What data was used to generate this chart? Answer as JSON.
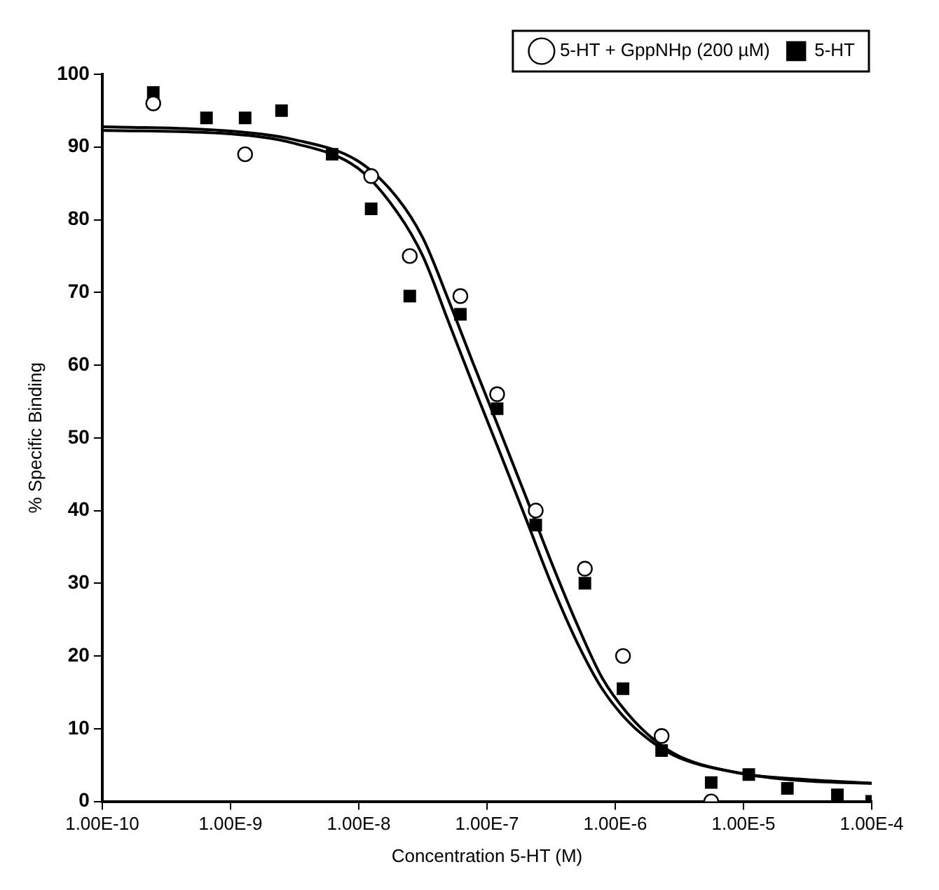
{
  "chart_data": {
    "type": "scatter",
    "xlabel": "Concentration 5-HT (M)",
    "ylabel": "% Specific Binding",
    "log": "x",
    "grid": false,
    "legend": "top right",
    "xlim": [
      1e-10,
      0.0001
    ],
    "xticks": [
      {
        "value": 1e-10,
        "label": "1.00E-10"
      },
      {
        "value": 1e-09,
        "label": "1.00E-9"
      },
      {
        "value": 1e-08,
        "label": "1.00E-8"
      },
      {
        "value": 1e-07,
        "label": "1.00E-7"
      },
      {
        "value": 1e-06,
        "label": "1.00E-6"
      },
      {
        "value": 1e-05,
        "label": "1.00E-5"
      },
      {
        "value": 0.0001,
        "label": "1.00E-4"
      }
    ],
    "ylim": [
      0,
      100
    ],
    "yticks": [
      0,
      10,
      20,
      30,
      40,
      50,
      60,
      70,
      80,
      90,
      100
    ],
    "x": [
      2.5e-10,
      6.5e-10,
      1.3e-09,
      2.5e-09,
      6.2e-09,
      1.25e-08,
      2.5e-08,
      6.2e-08,
      1.2e-07,
      2.4e-07,
      5.8e-07,
      1.15e-06,
      2.3e-06,
      5.6e-06,
      1.1e-05,
      2.2e-05,
      5.4e-05,
      0.0001
    ],
    "series": [
      {
        "name": "5-HT",
        "marker": "square",
        "color": "#000000",
        "values": [
          97.5,
          94,
          94,
          95,
          89,
          81.5,
          69.5,
          67,
          54,
          38,
          30,
          15.5,
          7,
          2.6,
          3.7,
          1.8,
          0.9,
          0
        ]
      },
      {
        "name": "5-HT + GppNHp (200 µM)",
        "marker": "circle",
        "color": "#ffffff",
        "values": [
          96,
          null,
          89,
          null,
          null,
          86,
          75,
          69.5,
          56,
          40,
          32,
          20,
          9,
          0,
          null,
          null,
          null,
          null
        ]
      },
      {
        "type": "line",
        "marker": "none",
        "color": "#000000",
        "x": [
          1e-10,
          1e-09,
          3.16e-09,
          1e-08,
          2e-08,
          3.16e-08,
          5e-08,
          7.9e-08,
          1.26e-07,
          2e-07,
          3.16e-07,
          5e-07,
          7.9e-07,
          1.26e-06,
          2e-06,
          3.16e-06,
          1e-05,
          3.16e-05,
          0.0001
        ],
        "values": [
          92.3,
          91.8,
          90.5,
          87,
          81,
          75,
          66,
          57,
          48,
          39,
          30,
          22,
          15.5,
          11,
          8,
          6,
          3.8,
          2.8,
          2.5
        ]
      },
      {
        "type": "line",
        "marker": "none",
        "color": "#000000",
        "x": [
          1e-10,
          1e-09,
          3.16e-09,
          1e-08,
          2e-08,
          3.16e-08,
          5e-08,
          7.9e-08,
          1.26e-07,
          2e-07,
          3.16e-07,
          5e-07,
          7.9e-07,
          1.26e-06,
          2e-06,
          3.16e-06,
          1e-05,
          3.16e-05,
          0.0001
        ],
        "values": [
          92.8,
          92.2,
          91,
          88,
          83,
          77.5,
          69,
          60,
          51,
          42,
          33,
          24.5,
          17,
          12,
          8.5,
          6.2,
          3.8,
          3,
          2.5
        ]
      }
    ]
  }
}
